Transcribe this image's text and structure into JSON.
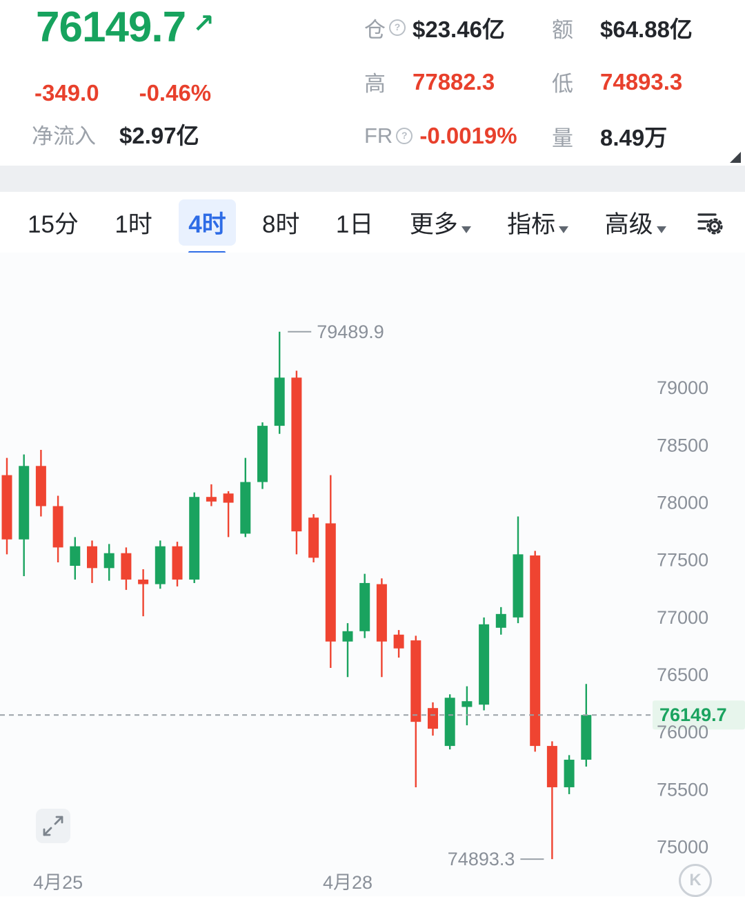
{
  "header": {
    "price": "76149.7",
    "arrow_icon": "↗",
    "change": "-349.0",
    "change_pct": "-0.46%",
    "netflow_label": "净流入",
    "netflow_value": "$2.97亿",
    "help_icon": "?",
    "stats": [
      {
        "label": "仓",
        "value": "$23.46亿"
      },
      {
        "label": "额",
        "value": "$64.88亿"
      },
      {
        "label": "高",
        "value": "77882.3"
      },
      {
        "label": "低",
        "value": "74893.3"
      },
      {
        "label": "FR",
        "value": "-0.0019%"
      },
      {
        "label": "量",
        "value": "8.49万"
      }
    ]
  },
  "tabs": {
    "active": "4时",
    "items": [
      {
        "label": "15分"
      },
      {
        "label": "1时"
      },
      {
        "label": "4时"
      },
      {
        "label": "8时"
      },
      {
        "label": "1日"
      },
      {
        "label": "更多"
      },
      {
        "label": "指标"
      },
      {
        "label": "高级"
      }
    ]
  },
  "chart": {
    "watermark": "K"
  },
  "colors": {
    "up": "#1aa35f",
    "down": "#ef4431",
    "accent_blue": "#2e6ce6",
    "axis_text": "#8a9099",
    "dashed_line": "#9aa1a8",
    "price_chip_bg": "#e7f5ec",
    "value_dark": "#23262b",
    "value_red": "#e8402c"
  },
  "chart_data": {
    "type": "candlestick",
    "interval": "4时",
    "title": "",
    "grid": false,
    "legend": false,
    "y_ticks": [
      79000,
      78500,
      78000,
      77500,
      77000,
      76500,
      76000,
      75500,
      75000
    ],
    "y_range": [
      74750,
      80180
    ],
    "current_price": 76149.7,
    "current_price_label": "76149.7",
    "high_label": "79489.9",
    "low_label": "74893.3",
    "x_labels": [
      {
        "text": "4月25",
        "candle_index": 3
      },
      {
        "text": "4月28",
        "candle_index": 20
      }
    ],
    "candle_format": "open,high,low,close",
    "candles": [
      [
        78240,
        78390,
        77550,
        77680
      ],
      [
        77680,
        78420,
        77360,
        78320
      ],
      [
        78320,
        78460,
        77880,
        77970
      ],
      [
        77970,
        78060,
        77480,
        77610
      ],
      [
        77450,
        77700,
        77330,
        77620
      ],
      [
        77620,
        77670,
        77300,
        77430
      ],
      [
        77430,
        77640,
        77320,
        77560
      ],
      [
        77560,
        77610,
        77240,
        77330
      ],
      [
        77330,
        77420,
        77010,
        77290
      ],
      [
        77290,
        77670,
        77250,
        77620
      ],
      [
        77620,
        77660,
        77270,
        77330
      ],
      [
        77330,
        78090,
        77300,
        78050
      ],
      [
        78050,
        78160,
        77970,
        78010
      ],
      [
        78080,
        78100,
        77700,
        78000
      ],
      [
        77730,
        78390,
        77700,
        78180
      ],
      [
        78180,
        78700,
        78120,
        78670
      ],
      [
        78670,
        79489.9,
        78600,
        79090
      ],
      [
        79090,
        79150,
        77550,
        77750
      ],
      [
        77870,
        77900,
        77480,
        77520
      ],
      [
        77820,
        78240,
        76560,
        76790
      ],
      [
        76790,
        76950,
        76480,
        76880
      ],
      [
        76880,
        77380,
        76820,
        77300
      ],
      [
        77290,
        77340,
        76480,
        76790
      ],
      [
        76850,
        76890,
        76650,
        76730
      ],
      [
        76800,
        76840,
        75520,
        76090
      ],
      [
        76210,
        76260,
        75970,
        76030
      ],
      [
        75880,
        76330,
        75850,
        76300
      ],
      [
        76220,
        76400,
        76060,
        76270
      ],
      [
        76240,
        77000,
        76190,
        76940
      ],
      [
        76910,
        77090,
        76850,
        77030
      ],
      [
        77000,
        77880,
        76950,
        77550
      ],
      [
        77540,
        77580,
        75830,
        75880
      ],
      [
        75880,
        75920,
        74893.3,
        75520
      ],
      [
        75520,
        75800,
        75460,
        75760
      ],
      [
        75760,
        76420,
        75700,
        76149.7
      ]
    ]
  }
}
